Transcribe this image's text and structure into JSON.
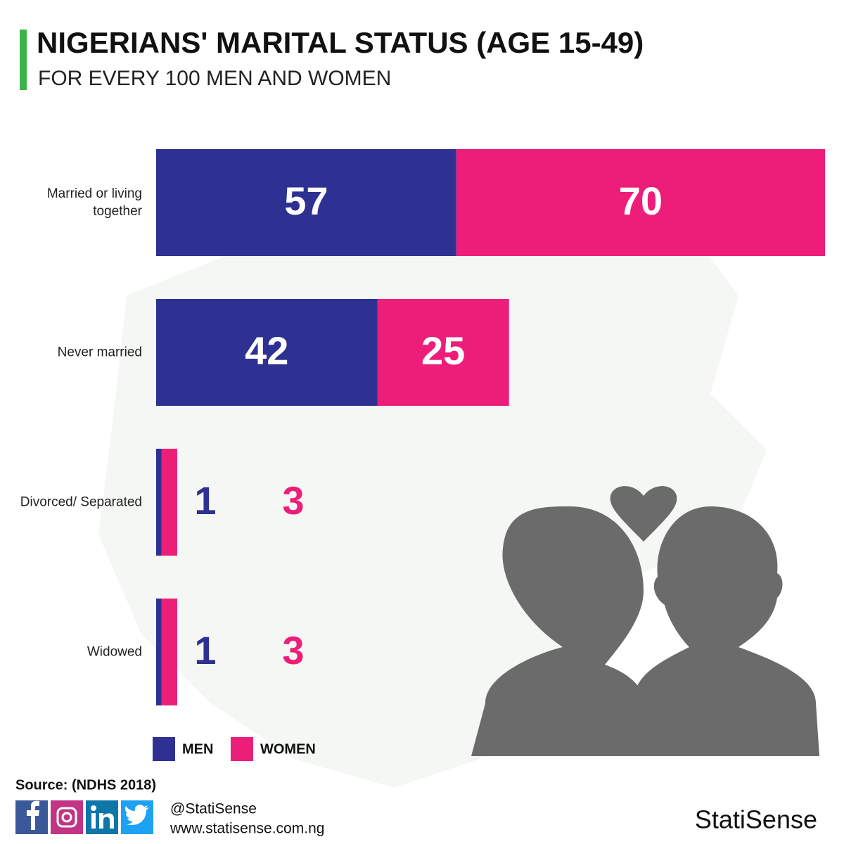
{
  "chart_data": {
    "type": "stacked-bar-horizontal",
    "title": "NIGERIANS' MARITAL STATUS (AGE 15-49)",
    "subtitle": "FOR EVERY 100 MEN AND WOMEN",
    "categories": [
      "Married or living together",
      "Never married",
      "Divorced/ Separated",
      "Widowed"
    ],
    "series": [
      {
        "name": "MEN",
        "color": "#2e3192",
        "values": [
          57,
          42,
          1,
          1
        ]
      },
      {
        "name": "WOMEN",
        "color": "#ed1e79",
        "values": [
          70,
          25,
          3,
          3
        ]
      }
    ],
    "source": "Source: (NDHS 2018)",
    "handle": "@StatiSense",
    "website": "www.statisense.com.ng",
    "brand": "StatiSense"
  }
}
